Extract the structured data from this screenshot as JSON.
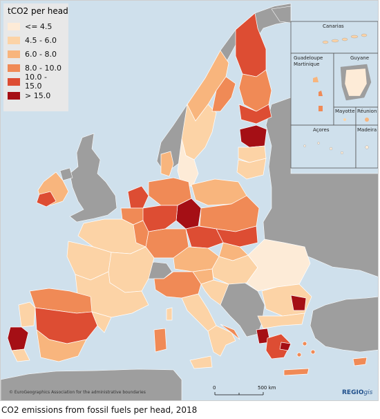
{
  "legend": {
    "title": "tCO2 per head",
    "classes": [
      {
        "label": "<= 4.5",
        "color": "#fdebd7"
      },
      {
        "label": "4.5 - 6.0",
        "color": "#fcd3a6"
      },
      {
        "label": "6.0 - 8.0",
        "color": "#f8b57d"
      },
      {
        "label": "8.0 - 10.0",
        "color": "#f08a56"
      },
      {
        "label": "10.0 - 15.0",
        "color": "#dd4d33"
      },
      {
        "label": "> 15.0",
        "color": "#a50f15"
      }
    ]
  },
  "colors": {
    "sea": "#cfe0ec",
    "non_eu_land": "#9e9e9e",
    "borders": "#ffffff"
  },
  "insets": {
    "canarias": "Canarias",
    "guadeloupe": "Guadeloupe",
    "martinique": "Martinique",
    "guyane": "Guyane",
    "mayotte": "Mayotte",
    "reunion": "Réunion",
    "acores": "Açores",
    "madeira": "Madeira"
  },
  "scale_bar": {
    "start": "0",
    "end": "500 km"
  },
  "attribution": "© EuroGeographics Association for the administrative boundaries",
  "brand": {
    "main": "REGIO",
    "italic": "gis"
  },
  "caption": "CO2 emissions from fossil fuels per head, 2018"
}
